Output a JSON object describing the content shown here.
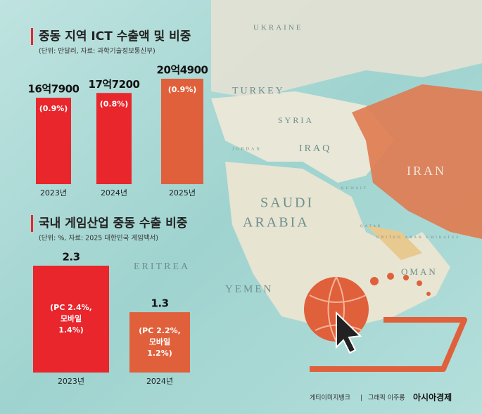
{
  "chart_data": [
    {
      "type": "bar",
      "title": "중동 지역 ICT 수출액 및 비중",
      "subtitle": "(단위: 만달러, 자료: 과학기술정보통신부)",
      "categories": [
        "2023년",
        "2024년",
        "2025년"
      ],
      "values": [
        167900,
        177200,
        204900
      ],
      "value_labels": [
        "16억7900",
        "17억7200",
        "20억4900"
      ],
      "share_labels": [
        "(0.9%)",
        "(0.8%)",
        "(0.9%)"
      ],
      "colors": [
        "#e8262c",
        "#e8262c",
        "#e0603b"
      ]
    },
    {
      "type": "bar",
      "title": "국내 게임산업 중동 수출 비중",
      "subtitle": "(단위: %, 자료: 2025 대한민국 게임백서)",
      "categories": [
        "2023년",
        "2024년"
      ],
      "values": [
        2.3,
        1.3
      ],
      "breakdown_labels": [
        [
          "(PC 2.4%,",
          "모바일",
          "1.4%)"
        ],
        [
          "(PC 2.2%,",
          "모바일",
          "1.2%)"
        ]
      ],
      "colors": [
        "#e8262c",
        "#e0603b"
      ]
    }
  ],
  "map": {
    "labels": [
      "UKRAINE",
      "TURKEY",
      "SYRIA",
      "IRAQ",
      "IRAN",
      "SAUDI",
      "ARABIA",
      "YEMEN",
      "OMAN",
      "ERITREA",
      "JORDAN",
      "KUWAIT",
      "QATAR",
      "UNITED ARAB EMIRATES"
    ]
  },
  "credits": {
    "photo": "게티이미지뱅크",
    "graphic": "그래픽 이주룡",
    "publisher": "아시아경제"
  }
}
